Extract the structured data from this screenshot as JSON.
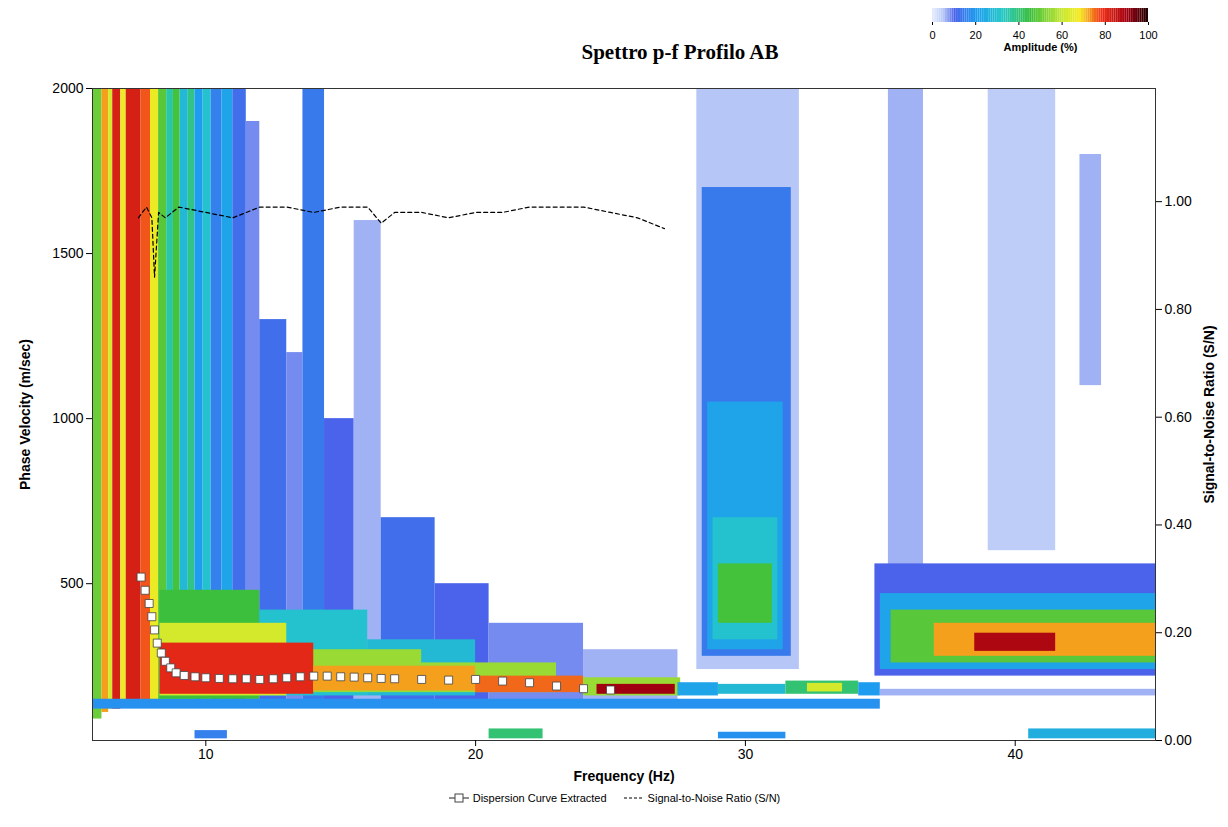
{
  "chart_data": {
    "type": "heatmap",
    "title": "Spettro p-f  Profilo AB",
    "x_label": "Frequency (Hz)",
    "y_label": "Phase Velocity (m/sec)",
    "y2_label": "Signal-to-Noise Ratio (S/N)",
    "xlim": [
      5.8,
      45.2
    ],
    "xticks": [
      10,
      20,
      30,
      40
    ],
    "ylim": [
      25,
      2000
    ],
    "yticks": [
      500,
      1000,
      1500,
      2000
    ],
    "y2lim": [
      0,
      1.21
    ],
    "y2ticks": [
      {
        "value": 0,
        "label": "0.00"
      },
      {
        "value": 0.2,
        "label": "0.20"
      },
      {
        "value": 0.4,
        "label": "0.40"
      },
      {
        "value": 0.6,
        "label": "0.60"
      },
      {
        "value": 0.8,
        "label": "0.80"
      },
      {
        "value": 1,
        "label": "1.00"
      }
    ],
    "colorbar": {
      "label": "Amplitude (%)",
      "range": [
        0,
        100
      ],
      "ticks": [
        0,
        20,
        40,
        60,
        80,
        100
      ]
    },
    "cells": [
      {
        "x0": 5.8,
        "x1": 6.15,
        "y0": 90,
        "y1": 2000,
        "value": 50
      },
      {
        "x0": 6.15,
        "x1": 6.4,
        "y0": 110,
        "y1": 2000,
        "value": 72
      },
      {
        "x0": 6.4,
        "x1": 6.55,
        "y0": 120,
        "y1": 2000,
        "value": 62
      },
      {
        "x0": 6.55,
        "x1": 6.85,
        "y0": 120,
        "y1": 2000,
        "value": 82
      },
      {
        "x0": 6.85,
        "x1": 7.05,
        "y0": 130,
        "y1": 2000,
        "value": 66
      },
      {
        "x0": 7.05,
        "x1": 7.6,
        "y0": 130,
        "y1": 2000,
        "value": 82
      },
      {
        "x0": 7.6,
        "x1": 7.95,
        "y0": 140,
        "y1": 2000,
        "value": 76
      },
      {
        "x0": 7.95,
        "x1": 8.25,
        "y0": 140,
        "y1": 2000,
        "value": 66
      },
      {
        "x0": 8.25,
        "x1": 8.55,
        "y0": 140,
        "y1": 2000,
        "value": 48
      },
      {
        "x0": 8.55,
        "x1": 8.8,
        "y0": 140,
        "y1": 2000,
        "value": 35
      },
      {
        "x0": 8.8,
        "x1": 9.05,
        "y0": 140,
        "y1": 2000,
        "value": 46
      },
      {
        "x0": 9.05,
        "x1": 9.35,
        "y0": 140,
        "y1": 2000,
        "value": 28
      },
      {
        "x0": 9.35,
        "x1": 9.6,
        "y0": 140,
        "y1": 2000,
        "value": 38
      },
      {
        "x0": 9.6,
        "x1": 9.9,
        "y0": 140,
        "y1": 2000,
        "value": 20
      },
      {
        "x0": 9.9,
        "x1": 10.2,
        "y0": 140,
        "y1": 2000,
        "value": 30
      },
      {
        "x0": 10.2,
        "x1": 10.6,
        "y0": 140,
        "y1": 2000,
        "value": 15
      },
      {
        "x0": 10.6,
        "x1": 11.0,
        "y0": 140,
        "y1": 2000,
        "value": 22
      },
      {
        "x0": 11.0,
        "x1": 11.5,
        "y0": 140,
        "y1": 2000,
        "value": 12
      },
      {
        "x0": 11.5,
        "x1": 12.0,
        "y0": 140,
        "y1": 1900,
        "value": 8
      },
      {
        "x0": 12.0,
        "x1": 13.0,
        "y0": 140,
        "y1": 1300,
        "value": 12
      },
      {
        "x0": 13.0,
        "x1": 13.6,
        "y0": 140,
        "y1": 1200,
        "value": 8
      },
      {
        "x0": 13.6,
        "x1": 14.4,
        "y0": 140,
        "y1": 2000,
        "value": 14
      },
      {
        "x0": 14.4,
        "x1": 15.5,
        "y0": 140,
        "y1": 1000,
        "value": 10
      },
      {
        "x0": 15.5,
        "x1": 16.5,
        "y0": 140,
        "y1": 1600,
        "value": 6
      },
      {
        "x0": 16.5,
        "x1": 18.5,
        "y0": 140,
        "y1": 700,
        "value": 12
      },
      {
        "x0": 18.5,
        "x1": 20.5,
        "y0": 140,
        "y1": 500,
        "value": 10
      },
      {
        "x0": 20.5,
        "x1": 24,
        "y0": 140,
        "y1": 380,
        "value": 8
      },
      {
        "x0": 24,
        "x1": 27.5,
        "y0": 140,
        "y1": 300,
        "value": 6
      },
      {
        "x0": 5.8,
        "x1": 35,
        "y0": 120,
        "y1": 150,
        "value": 18
      },
      {
        "x0": 8.3,
        "x1": 12,
        "y0": 150,
        "y1": 480,
        "value": 45
      },
      {
        "x0": 12,
        "x1": 16,
        "y0": 160,
        "y1": 420,
        "value": 30
      },
      {
        "x0": 16,
        "x1": 20,
        "y0": 160,
        "y1": 330,
        "value": 28
      },
      {
        "x0": 8.3,
        "x1": 13,
        "y0": 160,
        "y1": 380,
        "value": 62
      },
      {
        "x0": 13,
        "x1": 18,
        "y0": 170,
        "y1": 300,
        "value": 55
      },
      {
        "x0": 18,
        "x1": 23,
        "y0": 170,
        "y1": 260,
        "value": 55
      },
      {
        "x0": 8.3,
        "x1": 14,
        "y0": 165,
        "y1": 320,
        "value": 80
      },
      {
        "x0": 14,
        "x1": 20,
        "y0": 175,
        "y1": 250,
        "value": 72
      },
      {
        "x0": 20,
        "x1": 24,
        "y0": 170,
        "y1": 220,
        "value": 75
      },
      {
        "x0": 24,
        "x1": 27.6,
        "y0": 160,
        "y1": 215,
        "value": 55
      },
      {
        "x0": 24.5,
        "x1": 27.4,
        "y0": 165,
        "y1": 195,
        "value": 90
      },
      {
        "x0": 27.5,
        "x1": 29,
        "y0": 160,
        "y1": 200,
        "value": 22
      },
      {
        "x0": 29,
        "x1": 31.5,
        "y0": 165,
        "y1": 195,
        "value": 28
      },
      {
        "x0": 31.5,
        "x1": 34.2,
        "y0": 165,
        "y1": 205,
        "value": 40
      },
      {
        "x0": 32.3,
        "x1": 33.6,
        "y0": 172,
        "y1": 198,
        "value": 62
      },
      {
        "x0": 34.2,
        "x1": 35,
        "y0": 160,
        "y1": 200,
        "value": 20
      },
      {
        "x0": 28.2,
        "x1": 32,
        "y0": 240,
        "y1": 2000,
        "value": 5
      },
      {
        "x0": 28.4,
        "x1": 31.7,
        "y0": 280,
        "y1": 1700,
        "value": 14
      },
      {
        "x0": 28.6,
        "x1": 31.4,
        "y0": 300,
        "y1": 1050,
        "value": 22
      },
      {
        "x0": 28.8,
        "x1": 31.2,
        "y0": 330,
        "y1": 700,
        "value": 30
      },
      {
        "x0": 29.0,
        "x1": 31.0,
        "y0": 380,
        "y1": 560,
        "value": 46
      },
      {
        "x0": 35.3,
        "x1": 36.6,
        "y0": 350,
        "y1": 2000,
        "value": 6
      },
      {
        "x0": 39,
        "x1": 41.5,
        "y0": 600,
        "y1": 2000,
        "value": 4
      },
      {
        "x0": 42.4,
        "x1": 43.2,
        "y0": 1100,
        "y1": 1800,
        "value": 6
      },
      {
        "x0": 35,
        "x1": 45.2,
        "y0": 160,
        "y1": 180,
        "value": 6
      },
      {
        "x0": 34.8,
        "x1": 45.2,
        "y0": 220,
        "y1": 560,
        "value": 10
      },
      {
        "x0": 35,
        "x1": 45.2,
        "y0": 240,
        "y1": 470,
        "value": 22
      },
      {
        "x0": 35.4,
        "x1": 45.2,
        "y0": 260,
        "y1": 420,
        "value": 48
      },
      {
        "x0": 37,
        "x1": 45.2,
        "y0": 280,
        "y1": 380,
        "value": 72
      },
      {
        "x0": 38.5,
        "x1": 41.5,
        "y0": 295,
        "y1": 350,
        "value": 88
      },
      {
        "x0": 9.6,
        "x1": 10.8,
        "y0": 30,
        "y1": 55,
        "value": 15
      },
      {
        "x0": 20.5,
        "x1": 22.5,
        "y0": 30,
        "y1": 60,
        "value": 40
      },
      {
        "x0": 29,
        "x1": 31.5,
        "y0": 30,
        "y1": 50,
        "value": 18
      },
      {
        "x0": 40.5,
        "x1": 45.2,
        "y0": 30,
        "y1": 60,
        "value": 25
      }
    ],
    "series": [
      {
        "name": "Dispersion Curve Extracted",
        "type": "scatter",
        "marker": "square",
        "color": "#ffffff",
        "x": [
          7.6,
          7.75,
          7.9,
          8.0,
          8.1,
          8.2,
          8.35,
          8.5,
          8.7,
          8.9,
          9.2,
          9.6,
          10,
          10.5,
          11,
          11.5,
          12,
          12.5,
          13,
          13.5,
          14,
          14.5,
          15,
          15.5,
          16,
          16.5,
          17,
          18,
          19,
          20,
          21,
          22,
          23,
          24,
          25
        ],
        "values": [
          520,
          480,
          440,
          400,
          360,
          320,
          290,
          265,
          245,
          230,
          222,
          218,
          215,
          213,
          212,
          212,
          210,
          212,
          215,
          218,
          220,
          220,
          218,
          217,
          215,
          213,
          212,
          210,
          208,
          210,
          205,
          200,
          190,
          182,
          178
        ]
      },
      {
        "name": "Signal-to-Noise Ratio (S/N)",
        "type": "line",
        "line_style": "dashed",
        "color": "#000000",
        "axis": "y2",
        "x": [
          7.5,
          7.8,
          8.0,
          8.1,
          8.25,
          8.5,
          9,
          10,
          11,
          12,
          13,
          14,
          15,
          16,
          16.5,
          17,
          18,
          19,
          20,
          21,
          22,
          23,
          24,
          25,
          26,
          27
        ],
        "values": [
          0.97,
          0.99,
          0.97,
          0.86,
          0.98,
          0.97,
          0.99,
          0.98,
          0.97,
          0.99,
          0.99,
          0.98,
          0.99,
          0.99,
          0.96,
          0.98,
          0.98,
          0.97,
          0.98,
          0.98,
          0.99,
          0.99,
          0.99,
          0.98,
          0.97,
          0.95
        ]
      }
    ],
    "legend": "bottom"
  }
}
